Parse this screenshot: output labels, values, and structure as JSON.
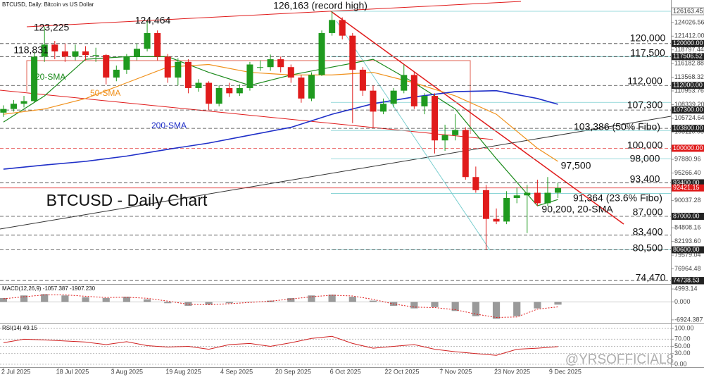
{
  "chart_data": [
    {
      "type": "candlestick",
      "title": "BTCUSD - Daily Chart",
      "subtitle": "BTCUSD, Daily:  Bitcoin vs US Dollar",
      "watermark": "@YRSOFFICIAL8",
      "up_color": "#1f9a1f",
      "down_color": "#e01b1b",
      "x": [
        "2025-07-02",
        "2025-07-05",
        "2025-07-08",
        "2025-07-11",
        "2025-07-14",
        "2025-07-17",
        "2025-07-20",
        "2025-07-23",
        "2025-07-26",
        "2025-07-29",
        "2025-08-01",
        "2025-08-04",
        "2025-08-07",
        "2025-08-10",
        "2025-08-13",
        "2025-08-16",
        "2025-08-19",
        "2025-08-22",
        "2025-08-25",
        "2025-08-28",
        "2025-08-31",
        "2025-09-03",
        "2025-09-06",
        "2025-09-09",
        "2025-09-12",
        "2025-09-15",
        "2025-09-18",
        "2025-09-21",
        "2025-09-24",
        "2025-09-27",
        "2025-09-30",
        "2025-10-03",
        "2025-10-06",
        "2025-10-09",
        "2025-10-12",
        "2025-10-15",
        "2025-10-18",
        "2025-10-21",
        "2025-10-24",
        "2025-10-27",
        "2025-10-30",
        "2025-11-02",
        "2025-11-05",
        "2025-11-08",
        "2025-11-11",
        "2025-11-14",
        "2025-11-17",
        "2025-11-20",
        "2025-11-23",
        "2025-11-26",
        "2025-11-29",
        "2025-12-02",
        "2025-12-05",
        "2025-12-08",
        "2025-12-11"
      ],
      "open": [
        106800,
        107500,
        108500,
        109000,
        117500,
        119800,
        118500,
        117500,
        118500,
        117800,
        117800,
        113500,
        115000,
        117500,
        119000,
        122000,
        117500,
        113500,
        116500,
        111500,
        112500,
        108500,
        111500,
        110500,
        111500,
        115500,
        115500,
        117000,
        115500,
        113500,
        109500,
        114000,
        122000,
        124500,
        121500,
        115000,
        111000,
        107000,
        108500,
        111000,
        114000,
        108000,
        110000,
        101500,
        102500,
        103500,
        94500,
        92000,
        86500,
        86000,
        90500,
        91000,
        91500,
        89500,
        91500
      ],
      "high": [
        108200,
        109200,
        110000,
        118500,
        123225,
        120500,
        120000,
        119800,
        119500,
        119200,
        118000,
        115800,
        118000,
        120000,
        124464,
        122500,
        118000,
        117200,
        117000,
        113200,
        112800,
        112000,
        112500,
        112200,
        116500,
        116800,
        117900,
        117500,
        116000,
        114000,
        114500,
        122500,
        126163,
        125000,
        122000,
        115500,
        112000,
        109500,
        111500,
        116000,
        114500,
        110500,
        110500,
        104500,
        106500,
        104000,
        96500,
        93000,
        88500,
        91800,
        92500,
        93000,
        94000,
        94500,
        93400
      ],
      "low": [
        106000,
        107000,
        107800,
        108800,
        116500,
        117000,
        116500,
        116800,
        116800,
        116500,
        112200,
        112800,
        114200,
        116800,
        118500,
        116800,
        112500,
        112000,
        110500,
        110800,
        107300,
        108000,
        109800,
        110000,
        111000,
        114800,
        114800,
        114500,
        112500,
        108700,
        109000,
        113800,
        121500,
        120800,
        104800,
        110000,
        104000,
        106500,
        107800,
        110500,
        107500,
        106500,
        99000,
        99500,
        101500,
        94000,
        91500,
        80600,
        85500,
        85500,
        89500,
        83800,
        89000,
        89000,
        90500
      ],
      "close": [
        107500,
        108500,
        109000,
        117500,
        119800,
        118500,
        117500,
        118500,
        117800,
        117800,
        113500,
        115000,
        117500,
        119000,
        122000,
        117500,
        113500,
        116500,
        111500,
        112500,
        108500,
        111500,
        110500,
        111500,
        116000,
        115500,
        117000,
        115500,
        113500,
        109500,
        114000,
        122000,
        124500,
        121500,
        115000,
        111000,
        107000,
        108500,
        111000,
        114000,
        108000,
        110000,
        101500,
        102500,
        103500,
        94500,
        92000,
        86500,
        86000,
        90500,
        91000,
        91500,
        89500,
        91500,
        92400
      ],
      "series": [
        {
          "name": "20-SMA",
          "color": "#1b8a1b",
          "x": [
            "2025-07-02",
            "2025-07-14",
            "2025-07-26",
            "2025-08-07",
            "2025-08-19",
            "2025-08-31",
            "2025-09-12",
            "2025-09-24",
            "2025-10-06",
            "2025-10-18",
            "2025-10-30",
            "2025-11-11",
            "2025-11-23",
            "2025-12-05",
            "2025-12-11"
          ],
          "values": [
            105000,
            110000,
            117000,
            117500,
            117500,
            114500,
            112000,
            114000,
            115500,
            117000,
            112500,
            107500,
            98000,
            89000,
            90200
          ]
        },
        {
          "name": "50-SMA",
          "color": "#f0901a",
          "x": [
            "2025-07-02",
            "2025-07-14",
            "2025-07-26",
            "2025-08-07",
            "2025-08-19",
            "2025-08-31",
            "2025-09-12",
            "2025-09-24",
            "2025-10-06",
            "2025-10-18",
            "2025-10-30",
            "2025-11-11",
            "2025-11-23",
            "2025-12-05",
            "2025-12-11"
          ],
          "values": [
            106500,
            107500,
            109500,
            112500,
            115500,
            116000,
            114500,
            114000,
            114000,
            114500,
            112500,
            110000,
            106500,
            100000,
            97500
          ]
        },
        {
          "name": "200-SMA",
          "color": "#1f2fc8",
          "x": [
            "2025-07-02",
            "2025-07-14",
            "2025-07-26",
            "2025-08-07",
            "2025-08-19",
            "2025-08-31",
            "2025-09-12",
            "2025-09-24",
            "2025-10-06",
            "2025-10-18",
            "2025-10-30",
            "2025-11-11",
            "2025-11-23",
            "2025-12-05",
            "2025-12-11"
          ],
          "values": [
            96000,
            96800,
            97500,
            98500,
            99800,
            101000,
            102500,
            104000,
            106500,
            108500,
            109800,
            110800,
            111000,
            109500,
            108400
          ]
        }
      ],
      "xlim": [
        "2025-07-01",
        "2026-01-13"
      ],
      "ylim": [
        74074,
        128317
      ],
      "yticks": [
        124026.56,
        {
          "value": 121412,
          "label": "121412.00"
        },
        118797.44,
        116182.88,
        113568.32,
        110953.76,
        {
          "value": 108339.2,
          "label": "108339.20"
        },
        105724.64,
        103110.08,
        97880.96,
        {
          "value": 95266.4,
          "label": "95266.40"
        },
        90037.28,
        84808.16,
        {
          "value": 82193.6,
          "label": "82193.60"
        },
        79579.04,
        76964.48
      ],
      "fibo_color": "#7ccfd0",
      "fibo_levels": [
        126163.45,
        117506.52,
        108764.15,
        103386,
        98000,
        91364,
        80600
      ],
      "levels": [
        {
          "value": 126163.45,
          "label": "126163.45",
          "color": "#ffffff"
        },
        {
          "value": 120000,
          "label": "120000.00",
          "color": "#222222"
        },
        {
          "value": 117506.52,
          "label": "117506.52",
          "color": "#222222"
        },
        {
          "value": 112000,
          "label": "112000.00",
          "color": "#222222"
        },
        {
          "value": 107300,
          "label": "107300.00",
          "color": "#222222"
        },
        {
          "value": 103800,
          "label": "103800.00",
          "color": "#222222"
        },
        {
          "value": 100000,
          "label": "100000.00",
          "color": "#e01b1b"
        },
        {
          "value": 93400,
          "label": "93400.00",
          "color": "#222222"
        },
        {
          "value": 92421.15,
          "label": "92421.15",
          "color": "#e01b1b"
        },
        {
          "value": 87000,
          "label": "87000.00",
          "color": "#222222"
        },
        {
          "value": 83400,
          "color": "#222222"
        },
        {
          "value": 80600,
          "label": "80600.00",
          "color": "#222222"
        },
        {
          "value": 74738.53,
          "label": "74738.53",
          "color": "#222222"
        }
      ],
      "annotations": [
        "126,163 (record high)",
        "124,464",
        "123,225",
        "118,831",
        "120,000",
        "117,500",
        "112,000",
        "107,300",
        "103,386 (50% Fibo)",
        "100,000",
        "98,000",
        "97,500",
        "93,400",
        "91,364 (23.6% Fibo)",
        "90,200, 20-SMA",
        "87,000",
        "83,400",
        "80,500",
        "74,470"
      ]
    },
    {
      "type": "macd",
      "title": "MACD(12,26,9) -1057.387 -1907.230",
      "color": "#9a9a9a",
      "signal_color": "#e01b1b",
      "x": [
        "2025-07-02",
        "2025-07-08",
        "2025-07-14",
        "2025-07-20",
        "2025-07-26",
        "2025-08-01",
        "2025-08-07",
        "2025-08-13",
        "2025-08-19",
        "2025-08-25",
        "2025-08-31",
        "2025-09-06",
        "2025-09-12",
        "2025-09-18",
        "2025-09-24",
        "2025-09-30",
        "2025-10-06",
        "2025-10-12",
        "2025-10-18",
        "2025-10-24",
        "2025-10-30",
        "2025-11-05",
        "2025-11-11",
        "2025-11-17",
        "2025-11-23",
        "2025-11-29",
        "2025-12-05",
        "2025-12-11"
      ],
      "values": [
        1500,
        2500,
        3000,
        2500,
        1800,
        1500,
        2000,
        1000,
        -500,
        -1500,
        -1000,
        -500,
        0,
        500,
        1500,
        2500,
        2800,
        2000,
        500,
        -1500,
        -2500,
        -2000,
        -3500,
        -5500,
        -6500,
        -5500,
        -2500,
        -1057.387
      ],
      "signal": [
        1200,
        2000,
        2700,
        2700,
        2200,
        1700,
        1800,
        1400,
        300,
        -900,
        -1100,
        -700,
        -200,
        300,
        1100,
        2000,
        2600,
        2300,
        1000,
        -800,
        -2000,
        -2200,
        -3000,
        -4700,
        -6000,
        -5800,
        -2800,
        -1907.23
      ],
      "xlim": [
        "2025-07-01",
        "2026-01-13"
      ],
      "ylim": [
        -8310,
        6648
      ],
      "yticks": [
        4993.14,
        {
          "value": 0,
          "label": "0.000"
        },
        -6924.387
      ]
    },
    {
      "type": "line",
      "title": "RSI(14) 49.15",
      "color": "#d02020",
      "x": [
        "2025-07-02",
        "2025-07-08",
        "2025-07-14",
        "2025-07-20",
        "2025-07-26",
        "2025-08-01",
        "2025-08-07",
        "2025-08-13",
        "2025-08-19",
        "2025-08-25",
        "2025-08-31",
        "2025-09-06",
        "2025-09-12",
        "2025-09-18",
        "2025-09-24",
        "2025-09-30",
        "2025-10-06",
        "2025-10-12",
        "2025-10-18",
        "2025-10-24",
        "2025-10-30",
        "2025-11-05",
        "2025-11-11",
        "2025-11-17",
        "2025-11-23",
        "2025-11-29",
        "2025-12-05",
        "2025-12-11"
      ],
      "values": [
        60,
        70,
        68,
        65,
        62,
        55,
        63,
        52,
        48,
        50,
        42,
        55,
        58,
        50,
        60,
        72,
        78,
        58,
        45,
        50,
        55,
        42,
        35,
        30,
        25,
        42,
        45,
        49.15
      ],
      "xlim": [
        "2025-07-01",
        "2026-01-13"
      ],
      "ylim": [
        -8,
        112
      ],
      "yticks": [
        {
          "value": 100,
          "label": "100.00"
        },
        {
          "value": 70,
          "label": "70.00"
        },
        {
          "value": 50,
          "label": "50.00"
        },
        {
          "value": 30,
          "label": "30.00"
        },
        {
          "value": 0,
          "label": "0.00"
        }
      ],
      "xticks": [
        {
          "value": "2025-07-02",
          "label": "2 Jul 2025"
        },
        {
          "value": "2025-07-18",
          "label": "18 Jul 2025"
        },
        {
          "value": "2025-08-03",
          "label": "3 Aug 2025"
        },
        {
          "value": "2025-08-19",
          "label": "19 Aug 2025"
        },
        {
          "value": "2025-09-04",
          "label": "4 Sep 2025"
        },
        {
          "value": "2025-09-20",
          "label": "20 Sep 2025"
        },
        {
          "value": "2025-10-06",
          "label": "6 Oct 2025"
        },
        {
          "value": "2025-10-22",
          "label": "22 Oct 2025"
        },
        {
          "value": "2025-11-07",
          "label": "7 Nov 2025"
        },
        {
          "value": "2025-11-23",
          "label": "23 Nov 2025"
        },
        {
          "value": "2025-12-09",
          "label": "9 Dec 2025"
        }
      ]
    }
  ]
}
